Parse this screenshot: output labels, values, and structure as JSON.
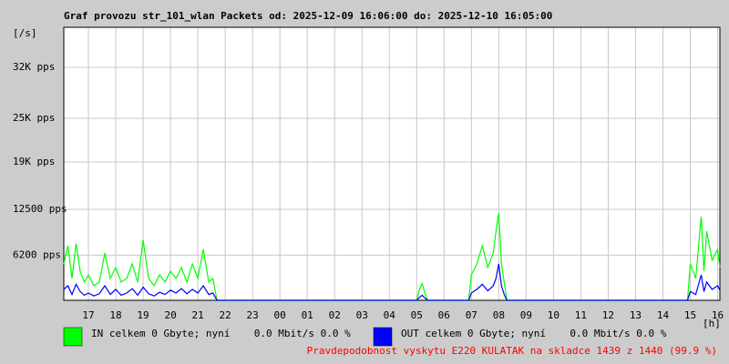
{
  "chart_data": {
    "type": "line",
    "title": "Graf provozu str_101_wlan Packets od: 2025-12-09 16:06:00 do: 2025-12-10 16:05:00",
    "ylabel": "[/s]",
    "xlabel": "[h]",
    "annotation": "Pravdepodobnost vyskytu E220 KULATAK na skladce 1439 z 1440 (99.9 %)",
    "xlim": [
      16.1,
      40.083
    ],
    "ylim": [
      0,
      37500
    ],
    "xticks": [
      {
        "value": 17,
        "label": "17"
      },
      {
        "value": 18,
        "label": "18"
      },
      {
        "value": 19,
        "label": "19"
      },
      {
        "value": 20,
        "label": "20"
      },
      {
        "value": 21,
        "label": "21"
      },
      {
        "value": 22,
        "label": "22"
      },
      {
        "value": 23,
        "label": "23"
      },
      {
        "value": 24,
        "label": "00"
      },
      {
        "value": 25,
        "label": "01"
      },
      {
        "value": 26,
        "label": "02"
      },
      {
        "value": 27,
        "label": "03"
      },
      {
        "value": 28,
        "label": "04"
      },
      {
        "value": 29,
        "label": "05"
      },
      {
        "value": 30,
        "label": "06"
      },
      {
        "value": 31,
        "label": "07"
      },
      {
        "value": 32,
        "label": "08"
      },
      {
        "value": 33,
        "label": "09"
      },
      {
        "value": 34,
        "label": "10"
      },
      {
        "value": 35,
        "label": "11"
      },
      {
        "value": 36,
        "label": "12"
      },
      {
        "value": 37,
        "label": "13"
      },
      {
        "value": 38,
        "label": "14"
      },
      {
        "value": 39,
        "label": "15"
      },
      {
        "value": 40,
        "label": "16"
      }
    ],
    "yticks": [
      {
        "value": 6200,
        "label": "6200 pps"
      },
      {
        "value": 12500,
        "label": "12500 pps"
      },
      {
        "value": 19000,
        "label": "19K pps"
      },
      {
        "value": 25000,
        "label": "25K pps"
      },
      {
        "value": 32000,
        "label": "32K pps"
      }
    ],
    "grid": true,
    "x": [
      16.1,
      16.25,
      16.4,
      16.55,
      16.7,
      16.85,
      17.0,
      17.2,
      17.4,
      17.6,
      17.8,
      18.0,
      18.2,
      18.4,
      18.6,
      18.8,
      19.0,
      19.2,
      19.4,
      19.6,
      19.8,
      20.0,
      20.2,
      20.4,
      20.6,
      20.8,
      21.0,
      21.2,
      21.4,
      21.55,
      21.7,
      29.0,
      29.1,
      29.2,
      29.3,
      29.4,
      30.9,
      31.0,
      31.2,
      31.4,
      31.6,
      31.8,
      31.9,
      32.0,
      32.1,
      32.2,
      32.3,
      38.9,
      39.0,
      39.2,
      39.4,
      39.5,
      39.6,
      39.8,
      40.0,
      40.08
    ],
    "series": [
      {
        "name": "IN celkem 0 Gbyte; nyní    0.0 Mbit/s 0.0 %",
        "color": "#00ff00",
        "values": [
          5000,
          7500,
          3000,
          7800,
          4000,
          2500,
          3500,
          2000,
          2500,
          6500,
          3000,
          4500,
          2500,
          3000,
          5000,
          2500,
          8300,
          3000,
          2000,
          3500,
          2500,
          4000,
          3000,
          4500,
          2500,
          5000,
          3000,
          7000,
          2500,
          3000,
          0,
          0,
          1500,
          2300,
          1000,
          0,
          0,
          3500,
          5000,
          7500,
          4500,
          6500,
          9500,
          12000,
          5000,
          2500,
          0,
          0,
          5000,
          3000,
          11500,
          4000,
          9500,
          5500,
          7000,
          4500
        ]
      },
      {
        "name": "OUT celkem 0 Gbyte; nyní    0.0 Mbit/s 0.0 %",
        "color": "#0000ff",
        "values": [
          1500,
          2000,
          800,
          2200,
          1200,
          700,
          1000,
          600,
          900,
          2000,
          800,
          1500,
          700,
          1000,
          1600,
          700,
          1800,
          900,
          600,
          1100,
          800,
          1400,
          1000,
          1600,
          900,
          1500,
          1000,
          2000,
          800,
          1000,
          0,
          0,
          400,
          700,
          300,
          0,
          0,
          1000,
          1500,
          2200,
          1300,
          2000,
          3000,
          5000,
          2000,
          800,
          0,
          0,
          1200,
          800,
          3500,
          1200,
          2500,
          1500,
          2000,
          1400
        ]
      }
    ]
  }
}
